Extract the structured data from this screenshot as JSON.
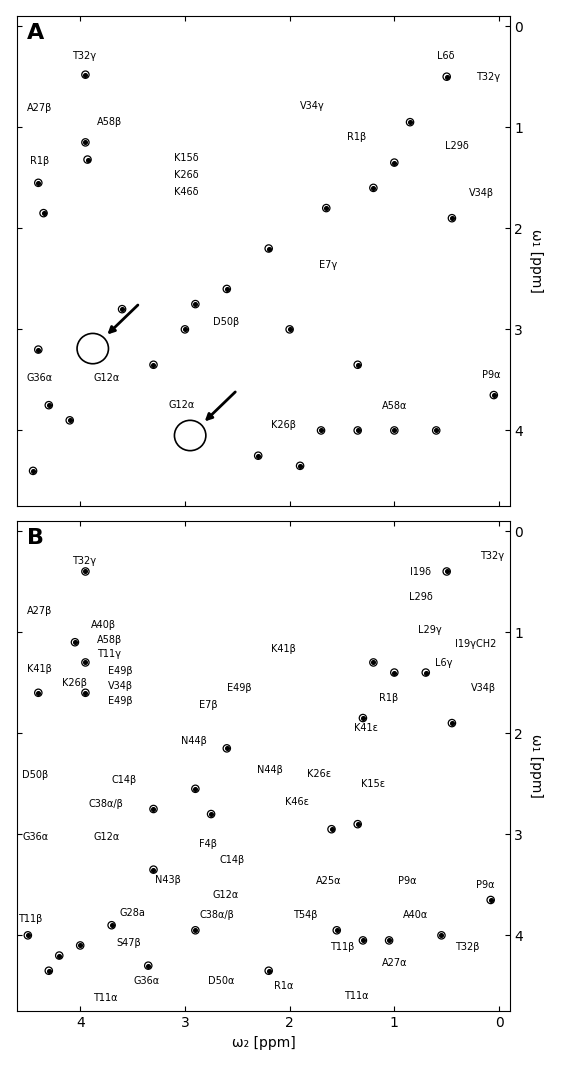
{
  "chart_data": [
    {
      "type": "scatter",
      "label": "A",
      "y_label": "ω₁ [ppm]",
      "tick_labels": "y",
      "xlim": [
        4.6,
        -0.1
      ],
      "ylim": [
        4.75,
        -0.1
      ],
      "xticks": [
        4,
        3,
        2,
        1,
        0
      ],
      "yticks": [
        0,
        1,
        2,
        3,
        4
      ],
      "color": "#000000",
      "marker": "o",
      "x": [
        3.95,
        3.95,
        3.93,
        4.4,
        4.35,
        3.6,
        4.4,
        4.3,
        4.1,
        4.45,
        1.2,
        1.0,
        0.85,
        0.5,
        0.45,
        1.65,
        2.2,
        2.6,
        3.0,
        2.0,
        1.35,
        1.35,
        1.0,
        0.6,
        0.05,
        1.7,
        2.3,
        1.9,
        3.3,
        2.9
      ],
      "y": [
        0.48,
        1.15,
        1.32,
        1.55,
        1.85,
        2.8,
        3.2,
        3.75,
        3.9,
        4.4,
        1.6,
        1.35,
        0.95,
        0.5,
        1.9,
        1.8,
        2.2,
        2.6,
        3.0,
        3.0,
        3.35,
        4.0,
        4.0,
        4.0,
        3.65,
        4.0,
        4.25,
        4.35,
        3.35,
        2.75
      ],
      "circled": {
        "x": [
          3.88,
          2.95
        ],
        "y": [
          3.19,
          4.05
        ]
      },
      "annotations": [
        {
          "text": "T32γ",
          "x": 3.96,
          "y": 0.3
        },
        {
          "text": "A27β",
          "x": 4.39,
          "y": 0.81
        },
        {
          "text": "A58β",
          "x": 3.72,
          "y": 0.95
        },
        {
          "text": "R1β",
          "x": 4.39,
          "y": 1.33
        },
        {
          "text": "V34γ",
          "x": 1.78,
          "y": 0.79
        },
        {
          "text": "L6δ",
          "x": 0.51,
          "y": 0.3
        },
        {
          "text": "T32γ",
          "x": 0.1,
          "y": 0.5
        },
        {
          "text": "L29δ",
          "x": 0.4,
          "y": 1.19
        },
        {
          "text": "R1β",
          "x": 1.36,
          "y": 1.1
        },
        {
          "text": "V34β",
          "x": 0.17,
          "y": 1.65
        },
        {
          "text": "K15δ",
          "x": 2.99,
          "y": 1.3
        },
        {
          "text": "K26δ",
          "x": 2.99,
          "y": 1.47
        },
        {
          "text": "K46δ",
          "x": 2.99,
          "y": 1.64
        },
        {
          "text": "E7γ",
          "x": 1.63,
          "y": 2.36
        },
        {
          "text": "D50β",
          "x": 2.61,
          "y": 2.93
        },
        {
          "text": "G36α",
          "x": 4.39,
          "y": 3.48
        },
        {
          "text": "G12α",
          "x": 3.75,
          "y": 3.48
        },
        {
          "text": "G12α",
          "x": 3.03,
          "y": 3.75
        },
        {
          "text": "K26β",
          "x": 2.06,
          "y": 3.95
        },
        {
          "text": "A58α",
          "x": 1.0,
          "y": 3.76
        },
        {
          "text": "P9α",
          "x": 0.07,
          "y": 3.45
        }
      ]
    },
    {
      "type": "scatter",
      "label": "B",
      "x_label": "ω₂ [ppm]",
      "y_label": "ω₁ [ppm]",
      "xlim": [
        4.6,
        -0.1
      ],
      "ylim": [
        4.75,
        -0.1
      ],
      "xticks": [
        4,
        3,
        2,
        1,
        0
      ],
      "yticks": [
        0,
        1,
        2,
        3,
        4
      ],
      "color": "#000000",
      "marker": "o",
      "x": [
        3.95,
        0.5,
        3.95,
        4.05,
        4.4,
        3.95,
        4.5,
        4.0,
        3.7,
        3.3,
        2.9,
        2.9,
        2.6,
        3.3,
        1.2,
        1.0,
        0.7,
        0.45,
        1.6,
        1.35,
        1.55,
        1.3,
        1.05,
        0.55,
        0.08,
        2.2,
        3.35,
        4.3,
        4.2,
        1.3,
        2.75
      ],
      "y": [
        0.4,
        0.4,
        1.3,
        1.1,
        1.6,
        1.6,
        4.0,
        4.1,
        3.9,
        3.35,
        3.95,
        2.55,
        2.15,
        2.75,
        1.3,
        1.4,
        1.4,
        1.9,
        2.95,
        2.9,
        3.95,
        4.05,
        4.05,
        4.0,
        3.65,
        4.35,
        4.3,
        4.35,
        4.2,
        1.85,
        2.8
      ],
      "annotations": [
        {
          "text": "T32γ",
          "x": 3.96,
          "y": 0.3
        },
        {
          "text": "T32γ",
          "x": 0.07,
          "y": 0.25
        },
        {
          "text": "I19δ",
          "x": 0.75,
          "y": 0.41
        },
        {
          "text": "L29δ",
          "x": 0.75,
          "y": 0.65
        },
        {
          "text": "A27β",
          "x": 4.39,
          "y": 0.79
        },
        {
          "text": "A40β",
          "x": 3.78,
          "y": 0.93
        },
        {
          "text": "A58β",
          "x": 3.72,
          "y": 1.08
        },
        {
          "text": "T11γ",
          "x": 3.72,
          "y": 1.22
        },
        {
          "text": "K41β",
          "x": 4.39,
          "y": 1.36
        },
        {
          "text": "K26β",
          "x": 4.05,
          "y": 1.5
        },
        {
          "text": "E49β",
          "x": 3.62,
          "y": 1.38
        },
        {
          "text": "V34β",
          "x": 3.62,
          "y": 1.53
        },
        {
          "text": "E49β",
          "x": 3.62,
          "y": 1.68
        },
        {
          "text": "L29γ",
          "x": 0.66,
          "y": 0.98
        },
        {
          "text": "I19γCH2",
          "x": 0.22,
          "y": 1.12
        },
        {
          "text": "L6γ",
          "x": 0.53,
          "y": 1.31
        },
        {
          "text": "V34β",
          "x": 0.15,
          "y": 1.55
        },
        {
          "text": "K41β",
          "x": 2.06,
          "y": 1.17
        },
        {
          "text": "E49β",
          "x": 2.48,
          "y": 1.55
        },
        {
          "text": "R1β",
          "x": 1.05,
          "y": 1.65
        },
        {
          "text": "E7β",
          "x": 2.78,
          "y": 1.72
        },
        {
          "text": "K41ε",
          "x": 1.27,
          "y": 1.95
        },
        {
          "text": "N44β",
          "x": 2.91,
          "y": 2.08
        },
        {
          "text": "N44β",
          "x": 2.19,
          "y": 2.36
        },
        {
          "text": "D50β",
          "x": 4.43,
          "y": 2.41
        },
        {
          "text": "C14β",
          "x": 3.58,
          "y": 2.46
        },
        {
          "text": "K26ε",
          "x": 1.72,
          "y": 2.4
        },
        {
          "text": "K15ε",
          "x": 1.2,
          "y": 2.5
        },
        {
          "text": "K46ε",
          "x": 1.93,
          "y": 2.68
        },
        {
          "text": "C38α/β",
          "x": 3.75,
          "y": 2.7
        },
        {
          "text": "G36α",
          "x": 4.43,
          "y": 3.03
        },
        {
          "text": "G12α",
          "x": 3.75,
          "y": 3.03
        },
        {
          "text": "F4β",
          "x": 2.78,
          "y": 3.1
        },
        {
          "text": "C14β",
          "x": 2.55,
          "y": 3.25
        },
        {
          "text": "N43β",
          "x": 3.16,
          "y": 3.45
        },
        {
          "text": "G12α",
          "x": 2.61,
          "y": 3.6
        },
        {
          "text": "A25α",
          "x": 1.63,
          "y": 3.46
        },
        {
          "text": "P9α",
          "x": 0.88,
          "y": 3.46
        },
        {
          "text": "P9α",
          "x": 0.13,
          "y": 3.5
        },
        {
          "text": "T11β",
          "x": 4.48,
          "y": 3.84
        },
        {
          "text": "G28a",
          "x": 3.5,
          "y": 3.78
        },
        {
          "text": "C38α/β",
          "x": 2.69,
          "y": 3.8
        },
        {
          "text": "T54β",
          "x": 1.85,
          "y": 3.8
        },
        {
          "text": "A40α",
          "x": 0.8,
          "y": 3.8
        },
        {
          "text": "T32β",
          "x": 0.3,
          "y": 4.12
        },
        {
          "text": "T11β",
          "x": 1.5,
          "y": 4.12
        },
        {
          "text": "A27α",
          "x": 1.0,
          "y": 4.27
        },
        {
          "text": "S47β",
          "x": 3.54,
          "y": 4.08
        },
        {
          "text": "G36α",
          "x": 3.37,
          "y": 4.45
        },
        {
          "text": "D50α",
          "x": 2.65,
          "y": 4.45
        },
        {
          "text": "R1α",
          "x": 2.06,
          "y": 4.5
        },
        {
          "text": "T11α",
          "x": 3.76,
          "y": 4.62
        },
        {
          "text": "T11α",
          "x": 1.36,
          "y": 4.6
        }
      ]
    }
  ]
}
